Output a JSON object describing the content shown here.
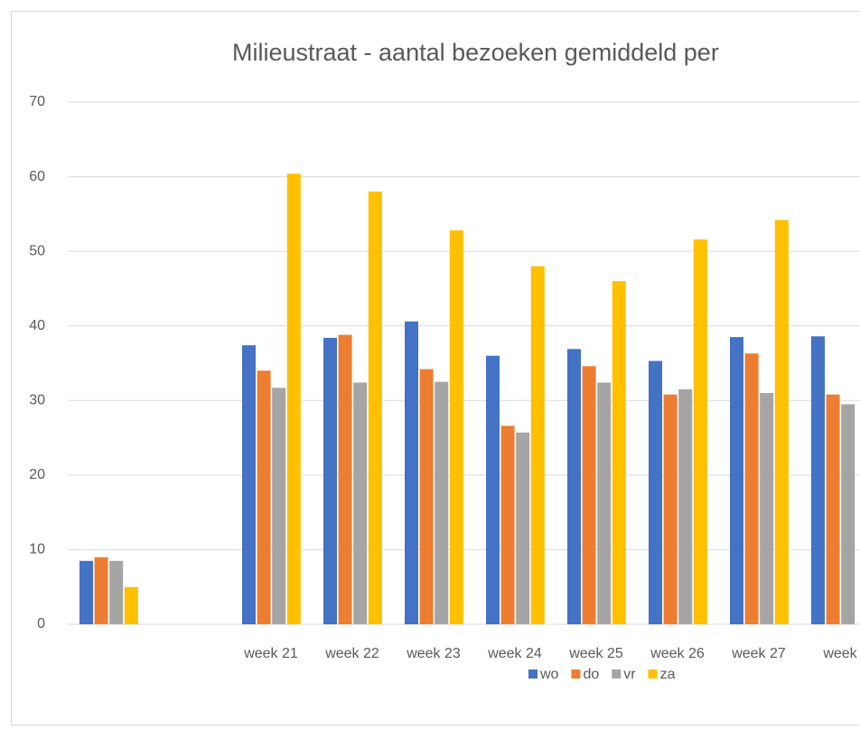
{
  "chart_data": {
    "type": "bar",
    "title": "Milieustraat - aantal bezoeken gemiddeld per",
    "categories": [
      null,
      null,
      "week 21",
      "week 22",
      "week 23",
      "week 24",
      "week 25",
      "week 26",
      "week 27",
      "week"
    ],
    "series": [
      {
        "name": "wo",
        "color": "#4472c4",
        "values": [
          8.5,
          null,
          37.4,
          38.4,
          40.6,
          36,
          36.9,
          35.3,
          38.5,
          38.6
        ]
      },
      {
        "name": "do",
        "color": "#ed7d31",
        "values": [
          9,
          null,
          34,
          38.8,
          34.2,
          26.6,
          34.6,
          30.8,
          36.3,
          30.8
        ]
      },
      {
        "name": "vr",
        "color": "#a5a5a5",
        "values": [
          8.5,
          null,
          31.7,
          32.4,
          32.5,
          25.7,
          32.4,
          31.5,
          31,
          29.5
        ]
      },
      {
        "name": "za",
        "color": "#ffc000",
        "values": [
          5,
          null,
          60.4,
          58,
          52.8,
          48,
          46,
          51.6,
          54.2,
          null
        ]
      }
    ],
    "ylim": [
      0,
      70
    ],
    "yticks": [
      0,
      10,
      20,
      30,
      40,
      50,
      60,
      70
    ],
    "grid": true,
    "legend": "bottom"
  }
}
